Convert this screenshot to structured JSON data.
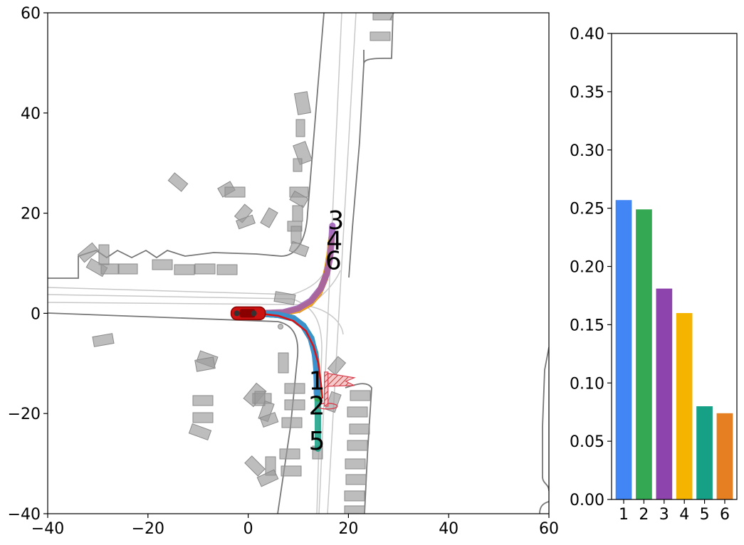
{
  "chart_data": [
    {
      "type": "scatter",
      "subtype": "trajectory-map",
      "title": "",
      "xlabel": "",
      "ylabel": "",
      "xlim": [
        -40,
        60
      ],
      "ylim": [
        -40,
        60
      ],
      "xticks": [
        -40,
        -20,
        0,
        20,
        40,
        60
      ],
      "yticks": [
        -40,
        -20,
        0,
        20,
        40,
        60
      ],
      "grid": false,
      "ego_vehicle": {
        "x": 0,
        "y": 0,
        "color": "#cc1111"
      },
      "trajectories": [
        {
          "label": "1",
          "color": "#3c8ee0",
          "points": [
            [
              2,
              0
            ],
            [
              6,
              -0.3
            ],
            [
              9,
              -1
            ],
            [
              11,
              -2.5
            ],
            [
              12.5,
              -5
            ],
            [
              13.3,
              -8
            ],
            [
              13.6,
              -11
            ],
            [
              13.7,
              -14
            ],
            [
              13.7,
              -16
            ]
          ],
          "label_pos": [
            13.7,
            -13.5
          ]
        },
        {
          "label": "2",
          "color": "#34a853",
          "points": [
            [
              2,
              0
            ],
            [
              6,
              -0.3
            ],
            [
              9,
              -1
            ],
            [
              11,
              -2.5
            ],
            [
              12.5,
              -5
            ],
            [
              13.4,
              -8
            ],
            [
              13.7,
              -11
            ],
            [
              13.8,
              -15
            ],
            [
              13.8,
              -17
            ]
          ],
          "label_pos": [
            13.7,
            -18.5
          ]
        },
        {
          "label": "3",
          "color": "#9b59b6",
          "points": [
            [
              2,
              0
            ],
            [
              7,
              0.2
            ],
            [
              10,
              1
            ],
            [
              12.5,
              2.5
            ],
            [
              14.5,
              5
            ],
            [
              15.7,
              8
            ],
            [
              16.3,
              11
            ],
            [
              16.6,
              14
            ],
            [
              16.8,
              17.5
            ]
          ],
          "label_pos": [
            17.5,
            18.5
          ]
        },
        {
          "label": "4",
          "color": "#f4b400",
          "points": [
            [
              2,
              0
            ],
            [
              7,
              0.1
            ],
            [
              10,
              0.8
            ],
            [
              12.5,
              2.2
            ],
            [
              14.3,
              4.5
            ],
            [
              15.5,
              7.5
            ],
            [
              16.1,
              10.5
            ],
            [
              16.4,
              13.5
            ],
            [
              16.6,
              15
            ]
          ],
          "label_pos": [
            17.2,
            14.5
          ]
        },
        {
          "label": "5",
          "color": "#16a085",
          "points": [
            [
              2,
              0
            ],
            [
              6,
              -0.3
            ],
            [
              9,
              -1
            ],
            [
              11,
              -2.5
            ],
            [
              12.6,
              -5
            ],
            [
              13.5,
              -9
            ],
            [
              13.8,
              -14
            ],
            [
              13.9,
              -20
            ],
            [
              13.9,
              -27
            ]
          ],
          "label_pos": [
            13.7,
            -25.5
          ]
        },
        {
          "label": "6",
          "color": "#e67e22",
          "points": [
            [
              2,
              0
            ],
            [
              7,
              0.1
            ],
            [
              10,
              0.7
            ],
            [
              12.4,
              2
            ],
            [
              14.1,
              4
            ],
            [
              15.3,
              6.8
            ],
            [
              15.9,
              9.5
            ],
            [
              16.1,
              11
            ]
          ],
          "label_pos": [
            17,
            10.5
          ]
        }
      ],
      "ground_truth": {
        "color": "#dd1111",
        "points": [
          [
            2,
            0
          ],
          [
            6,
            -0.5
          ],
          [
            9,
            -1.5
          ],
          [
            11.5,
            -3.5
          ],
          [
            13,
            -6.5
          ],
          [
            14,
            -10
          ],
          [
            14.5,
            -14
          ],
          [
            14.8,
            -17
          ]
        ]
      },
      "goal_flag": {
        "x": 15.5,
        "y": -12,
        "color": "#d94050"
      },
      "road_color": "#777777",
      "lane_color": "#c8c8c8",
      "object_color": "#9a9a9a"
    },
    {
      "type": "bar",
      "title": "",
      "xlabel": "",
      "ylabel": "",
      "categories": [
        "1",
        "2",
        "3",
        "4",
        "5",
        "6"
      ],
      "values": [
        0.257,
        0.249,
        0.181,
        0.16,
        0.08,
        0.074
      ],
      "colors": [
        "#4285f4",
        "#34a853",
        "#8e44ad",
        "#f4b400",
        "#16a085",
        "#e67e22"
      ],
      "ylim": [
        0,
        0.4
      ],
      "yticks": [
        "0.00",
        "0.05",
        "0.10",
        "0.15",
        "0.20",
        "0.25",
        "0.30",
        "0.35",
        "0.40"
      ],
      "grid": false
    }
  ]
}
